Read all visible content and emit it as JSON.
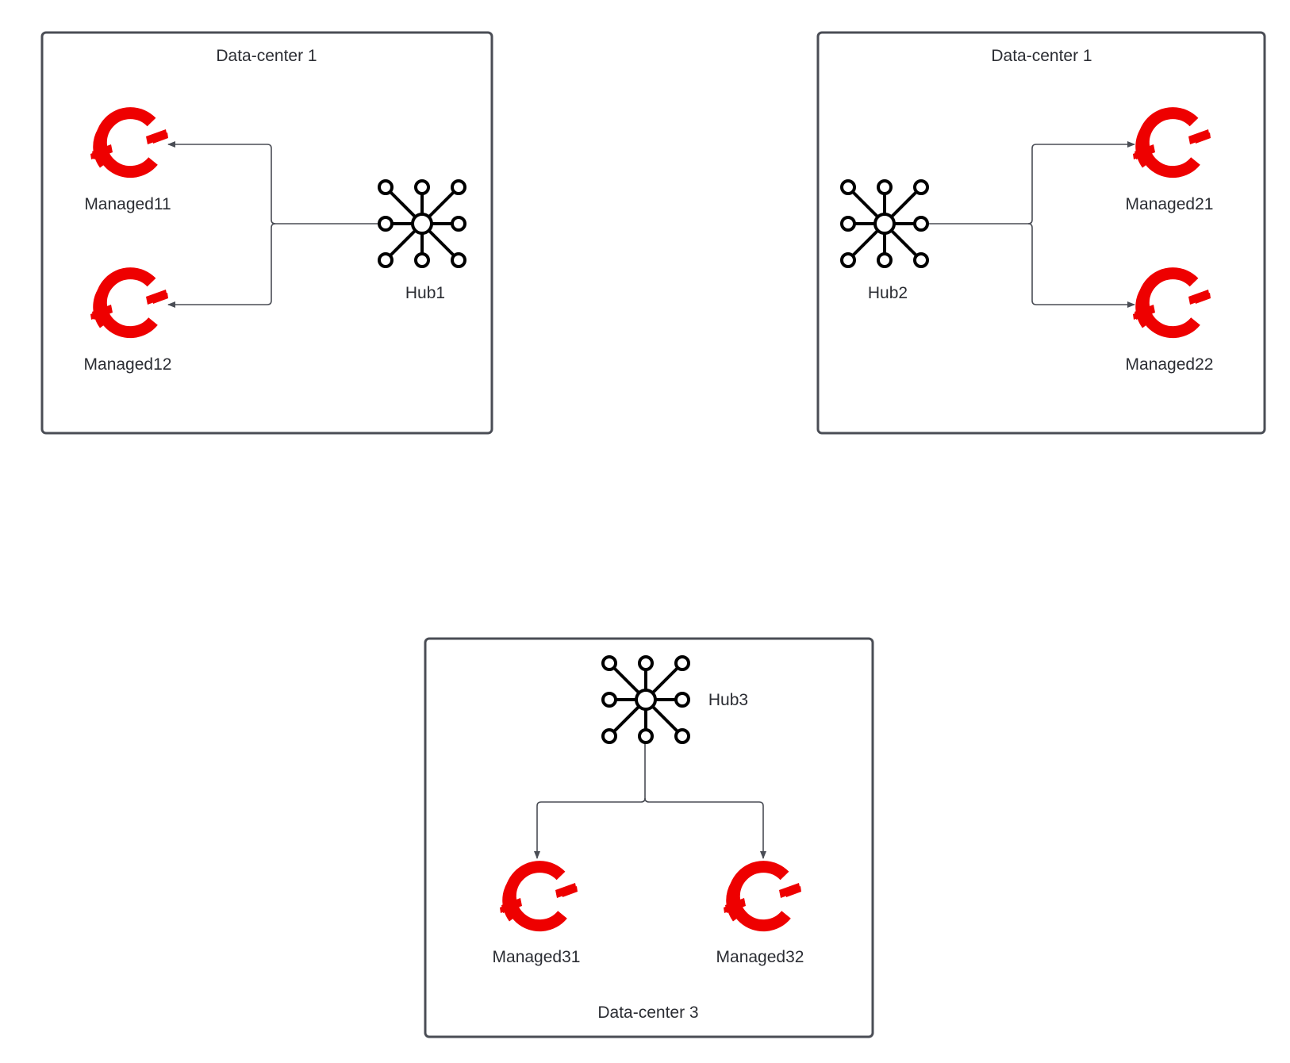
{
  "data_centers": [
    {
      "id": "dc1",
      "label": "Data-center 1"
    },
    {
      "id": "dc2",
      "label": "Data-center 1"
    },
    {
      "id": "dc3",
      "label": "Data-center 3"
    }
  ],
  "hubs": [
    {
      "id": "hub1",
      "label": "Hub1"
    },
    {
      "id": "hub2",
      "label": "Hub2"
    },
    {
      "id": "hub3",
      "label": "Hub3"
    }
  ],
  "managed": [
    {
      "id": "m11",
      "label": "Managed11"
    },
    {
      "id": "m12",
      "label": "Managed12"
    },
    {
      "id": "m21",
      "label": "Managed21"
    },
    {
      "id": "m22",
      "label": "Managed22"
    },
    {
      "id": "m31",
      "label": "Managed31"
    },
    {
      "id": "m32",
      "label": "Managed32"
    }
  ],
  "edges": [
    {
      "from": "hub1",
      "to": "m11"
    },
    {
      "from": "hub1",
      "to": "m12"
    },
    {
      "from": "hub2",
      "to": "m21"
    },
    {
      "from": "hub2",
      "to": "m22"
    },
    {
      "from": "hub3",
      "to": "m31"
    },
    {
      "from": "hub3",
      "to": "m32"
    }
  ],
  "colors": {
    "managed_icon": "#ee0000",
    "hub_icon": "#000000",
    "border": "#4a4d55"
  },
  "icons": {
    "hub": "hub-network-icon",
    "managed": "openshift-icon"
  }
}
